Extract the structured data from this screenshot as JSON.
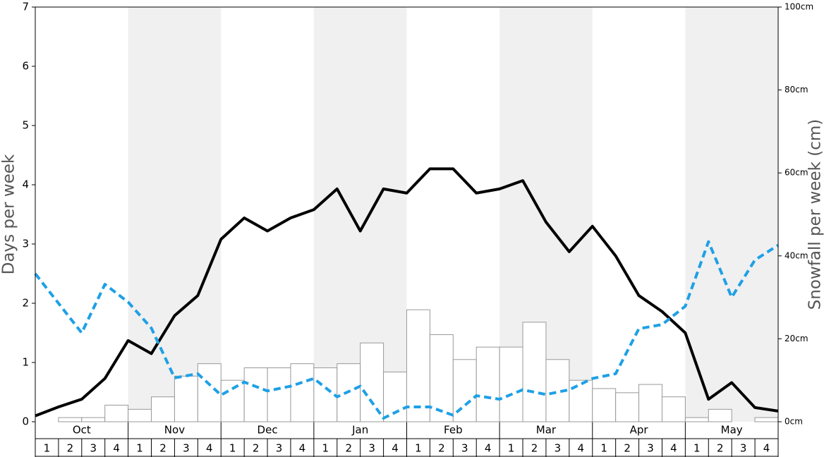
{
  "chart_data": {
    "type": "combo",
    "y_label": "Days per week",
    "y2_label": "Snowfall per week (cm)",
    "months": [
      "Oct",
      "Nov",
      "Dec",
      "Jan",
      "Feb",
      "Mar",
      "Apr",
      "May"
    ],
    "categories": [
      "1",
      "2",
      "3",
      "4",
      "1",
      "2",
      "3",
      "4",
      "1",
      "2",
      "3",
      "4",
      "1",
      "2",
      "3",
      "4",
      "1",
      "2",
      "3",
      "4",
      "1",
      "2",
      "3",
      "4",
      "1",
      "2",
      "3",
      "4",
      "1",
      "2",
      "3",
      "4"
    ],
    "x": [
      0,
      1,
      2,
      3,
      4,
      5,
      6,
      7,
      8,
      9,
      10,
      11,
      12,
      13,
      14,
      15,
      16,
      17,
      18,
      19,
      20,
      21,
      22,
      23,
      24,
      25,
      26,
      27,
      28,
      29,
      30,
      31,
      32
    ],
    "ylim": [
      0,
      7
    ],
    "yticks": [
      0,
      1,
      2,
      3,
      4,
      5,
      6,
      7
    ],
    "y2lim": [
      0,
      100
    ],
    "y2ticks": [
      {
        "value": 0,
        "label": "0cm"
      },
      {
        "value": 20,
        "label": "20cm"
      },
      {
        "value": 40,
        "label": "40cm"
      },
      {
        "value": 60,
        "label": "60cm"
      },
      {
        "value": 80,
        "label": "80cm"
      },
      {
        "value": 100,
        "label": "100cm"
      }
    ],
    "series": [
      {
        "type": "bar",
        "axis": "y2",
        "color": "#ffffff",
        "values": [
          0,
          1,
          1,
          4,
          3,
          6,
          11,
          14,
          10,
          13,
          13,
          14,
          13,
          14,
          19,
          12,
          27,
          21,
          15,
          18,
          18,
          24,
          15,
          10,
          8,
          7,
          9,
          6,
          1,
          3,
          0,
          1
        ]
      },
      {
        "type": "line",
        "color": "#000000",
        "dash": false,
        "values": [
          0.1,
          0.25,
          0.38,
          0.73,
          1.37,
          1.15,
          1.79,
          2.13,
          3.08,
          3.44,
          3.22,
          3.44,
          3.58,
          3.93,
          3.22,
          3.93,
          3.86,
          4.27,
          4.27,
          3.86,
          3.93,
          4.07,
          3.37,
          2.87,
          3.3,
          2.8,
          2.13,
          1.86,
          1.5,
          0.38,
          0.66,
          0.24,
          0.18
        ]
      },
      {
        "type": "line",
        "color": "#1ea0e6",
        "dash": true,
        "values": [
          2.5,
          2.0,
          1.5,
          2.32,
          2.02,
          1.58,
          0.74,
          0.81,
          0.45,
          0.67,
          0.52,
          0.6,
          0.73,
          0.42,
          0.6,
          0.06,
          0.25,
          0.25,
          0.11,
          0.44,
          0.38,
          0.54,
          0.46,
          0.54,
          0.73,
          0.81,
          1.57,
          1.64,
          1.95,
          3.04,
          2.1,
          2.73,
          2.98
        ]
      }
    ]
  }
}
